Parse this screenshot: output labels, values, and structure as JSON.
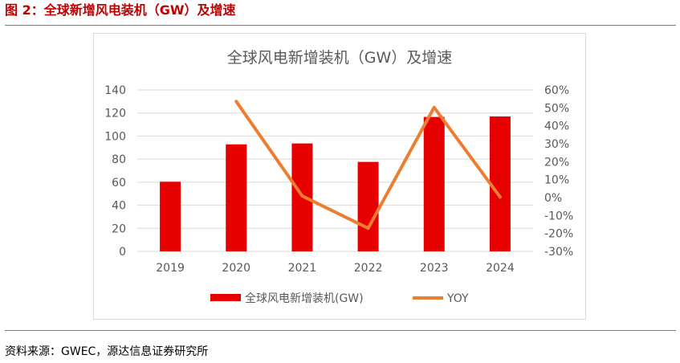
{
  "figure": {
    "caption": "图 2：全球新增风电装机（GW）及增速",
    "source": "资料来源：GWEC，源达信息证券研究所"
  },
  "chart_data": {
    "type": "bar",
    "title": "全球风电新增装机（GW）及增速",
    "categories": [
      "2019",
      "2020",
      "2021",
      "2022",
      "2023",
      "2024"
    ],
    "series": [
      {
        "name": "全球风电新增装机(GW)",
        "type": "bar",
        "axis": "left",
        "values": [
          60.4,
          92.8,
          93.6,
          77.6,
          116.6,
          117
        ],
        "color": "#e60000"
      },
      {
        "name": "YOY",
        "type": "line",
        "axis": "right",
        "values": [
          null,
          53.6,
          0.9,
          -17.1,
          50.3,
          0.3
        ],
        "color": "#ed7d31"
      }
    ],
    "y_left": {
      "min": 0,
      "max": 140,
      "step": 20,
      "ticks": [
        "0",
        "20",
        "40",
        "60",
        "80",
        "100",
        "120",
        "140"
      ]
    },
    "y_right": {
      "min": -30,
      "max": 60,
      "step": 10,
      "ticks": [
        "-30%",
        "-20%",
        "-10%",
        "0%",
        "10%",
        "20%",
        "30%",
        "40%",
        "50%",
        "60%"
      ]
    },
    "grid": true,
    "legend": "bottom"
  }
}
